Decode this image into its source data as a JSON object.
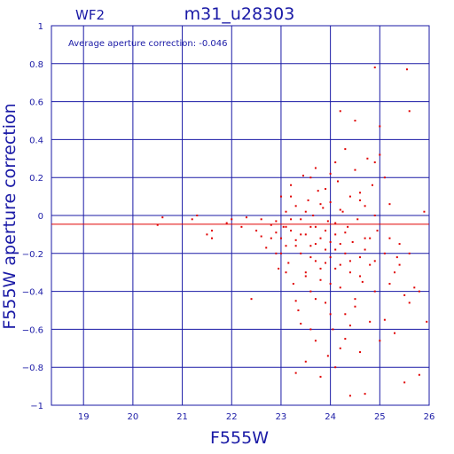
{
  "colors": {
    "axis": "#1a1aa6",
    "points": "#e00000",
    "reference_line": "#e00000"
  },
  "chart_data": {
    "type": "scatter",
    "title": "m31_u28303",
    "chip_label": "WF2",
    "annotation": "Average aperture correction: -0.046",
    "xlabel": "F555W",
    "ylabel": "F555W aperture correction",
    "xlim": [
      18.35,
      26
    ],
    "ylim": [
      -1,
      1
    ],
    "x_ticks": [
      19,
      20,
      21,
      22,
      23,
      24,
      25,
      26
    ],
    "y_ticks": [
      1,
      0.8,
      0.6,
      0.4,
      0.2,
      0,
      -0.2,
      -0.4,
      -0.6,
      -0.8,
      -1
    ],
    "x_tick_labels": [
      "19",
      "20",
      "21",
      "22",
      "23",
      "24",
      "25",
      "26"
    ],
    "y_tick_labels": [
      "1",
      "0.8",
      "0.6",
      "0.4",
      "0.2",
      "0",
      "−0.2",
      "−0.4",
      "−0.6",
      "−0.8",
      "−1"
    ],
    "grid": true,
    "reference_line_y": -0.046,
    "points": [
      [
        20.5,
        -0.05
      ],
      [
        20.6,
        -0.01
      ],
      [
        21.2,
        -0.02
      ],
      [
        21.3,
        0.0
      ],
      [
        21.5,
        -0.1
      ],
      [
        21.6,
        -0.12
      ],
      [
        21.6,
        -0.08
      ],
      [
        21.9,
        -0.04
      ],
      [
        22.0,
        -0.02
      ],
      [
        22.2,
        -0.06
      ],
      [
        22.3,
        -0.01
      ],
      [
        22.4,
        -0.44
      ],
      [
        22.5,
        -0.08
      ],
      [
        22.6,
        -0.11
      ],
      [
        22.6,
        -0.02
      ],
      [
        22.7,
        -0.17
      ],
      [
        22.8,
        -0.05
      ],
      [
        22.8,
        -0.12
      ],
      [
        22.9,
        -0.2
      ],
      [
        22.9,
        -0.03
      ],
      [
        22.95,
        -0.28
      ],
      [
        23.0,
        0.1
      ],
      [
        23.0,
        -0.12
      ],
      [
        23.05,
        -0.06
      ],
      [
        23.1,
        -0.16
      ],
      [
        23.1,
        0.02
      ],
      [
        23.15,
        -0.25
      ],
      [
        23.2,
        -0.08
      ],
      [
        23.2,
        0.16
      ],
      [
        23.25,
        -0.36
      ],
      [
        23.3,
        -0.13
      ],
      [
        23.3,
        0.05
      ],
      [
        23.35,
        -0.5
      ],
      [
        23.4,
        -0.2
      ],
      [
        23.4,
        -0.02
      ],
      [
        23.45,
        0.21
      ],
      [
        23.5,
        -0.1
      ],
      [
        23.5,
        -0.3
      ],
      [
        23.55,
        0.08
      ],
      [
        23.6,
        -0.4
      ],
      [
        23.6,
        -0.16
      ],
      [
        23.65,
        0.0
      ],
      [
        23.7,
        -0.24
      ],
      [
        23.7,
        -0.06
      ],
      [
        23.75,
        0.13
      ],
      [
        23.8,
        -0.12
      ],
      [
        23.8,
        -0.34
      ],
      [
        23.85,
        0.04
      ],
      [
        23.9,
        -0.18
      ],
      [
        23.9,
        -0.46
      ],
      [
        23.95,
        -0.03
      ],
      [
        24.0,
        -0.22
      ],
      [
        24.0,
        0.07
      ],
      [
        24.05,
        -0.6
      ],
      [
        24.1,
        -0.1
      ],
      [
        24.1,
        -0.28
      ],
      [
        24.15,
        0.18
      ],
      [
        24.2,
        -0.15
      ],
      [
        24.2,
        -0.38
      ],
      [
        24.25,
        0.02
      ],
      [
        24.3,
        -0.2
      ],
      [
        24.3,
        -0.52
      ],
      [
        24.35,
        -0.06
      ],
      [
        24.4,
        0.1
      ],
      [
        24.4,
        -0.3
      ],
      [
        24.45,
        -0.14
      ],
      [
        24.5,
        0.24
      ],
      [
        24.5,
        -0.44
      ],
      [
        24.55,
        -0.02
      ],
      [
        24.6,
        -0.22
      ],
      [
        24.6,
        0.12
      ],
      [
        24.65,
        -0.35
      ],
      [
        24.7,
        0.05
      ],
      [
        24.7,
        -0.12
      ],
      [
        24.75,
        0.3
      ],
      [
        24.8,
        -0.26
      ],
      [
        24.8,
        -0.56
      ],
      [
        24.85,
        0.16
      ],
      [
        24.9,
        -0.4
      ],
      [
        24.9,
        0.28
      ],
      [
        24.95,
        -0.08
      ],
      [
        25.0,
        -0.66
      ],
      [
        25.0,
        0.47
      ],
      [
        25.1,
        -0.2
      ],
      [
        25.1,
        -0.55
      ],
      [
        25.2,
        -0.36
      ],
      [
        25.2,
        0.06
      ],
      [
        25.3,
        -0.62
      ],
      [
        25.35,
        -0.22
      ],
      [
        25.4,
        -0.15
      ],
      [
        25.5,
        -0.42
      ],
      [
        25.5,
        -0.88
      ],
      [
        25.6,
        0.55
      ],
      [
        25.6,
        -0.46
      ],
      [
        25.7,
        -0.38
      ],
      [
        25.8,
        -0.84
      ],
      [
        25.9,
        0.02
      ],
      [
        25.95,
        -0.56
      ],
      [
        24.9,
        0.78
      ],
      [
        25.55,
        0.77
      ],
      [
        24.4,
        -0.95
      ],
      [
        24.7,
        -0.94
      ],
      [
        23.3,
        -0.83
      ],
      [
        23.5,
        -0.77
      ],
      [
        23.8,
        -0.85
      ],
      [
        24.1,
        -0.8
      ],
      [
        24.6,
        -0.72
      ],
      [
        24.3,
        -0.65
      ],
      [
        23.95,
        -0.74
      ],
      [
        23.4,
        -0.57
      ],
      [
        25.1,
        0.2
      ],
      [
        24.2,
        0.55
      ],
      [
        24.5,
        0.5
      ],
      [
        25.0,
        0.32
      ],
      [
        24.3,
        0.35
      ],
      [
        24.1,
        0.28
      ],
      [
        23.7,
        0.25
      ],
      [
        23.6,
        0.2
      ],
      [
        24.0,
        0.22
      ],
      [
        23.9,
        0.14
      ],
      [
        23.2,
        0.1
      ],
      [
        23.3,
        -0.45
      ],
      [
        23.6,
        -0.6
      ],
      [
        23.7,
        -0.66
      ],
      [
        24.0,
        -0.52
      ],
      [
        24.2,
        -0.7
      ],
      [
        24.4,
        -0.58
      ],
      [
        23.5,
        -0.32
      ],
      [
        23.7,
        -0.44
      ],
      [
        24.5,
        -0.48
      ],
      [
        24.0,
        -0.36
      ],
      [
        23.8,
        -0.28
      ],
      [
        24.6,
        -0.32
      ],
      [
        24.8,
        -0.12
      ],
      [
        23.9,
        -0.08
      ],
      [
        24.1,
        -0.04
      ],
      [
        23.4,
        -0.1
      ],
      [
        23.6,
        -0.06
      ],
      [
        24.3,
        -0.09
      ],
      [
        23.2,
        -0.02
      ],
      [
        23.5,
        0.02
      ],
      [
        23.8,
        0.06
      ],
      [
        24.2,
        0.03
      ],
      [
        24.6,
        0.08
      ],
      [
        24.9,
        0.0
      ],
      [
        23.1,
        -0.3
      ],
      [
        23.0,
        -0.2
      ],
      [
        22.9,
        -0.09
      ],
      [
        24.0,
        -0.14
      ],
      [
        24.1,
        -0.18
      ],
      [
        23.7,
        -0.15
      ],
      [
        23.9,
        -0.25
      ],
      [
        24.4,
        -0.24
      ],
      [
        24.2,
        -0.26
      ],
      [
        23.6,
        -0.22
      ],
      [
        23.3,
        -0.16
      ],
      [
        23.1,
        -0.06
      ],
      [
        24.7,
        -0.18
      ],
      [
        24.9,
        -0.24
      ],
      [
        25.2,
        -0.12
      ],
      [
        25.4,
        -0.26
      ],
      [
        25.6,
        -0.2
      ],
      [
        25.8,
        -0.4
      ],
      [
        25.3,
        -0.3
      ]
    ]
  }
}
